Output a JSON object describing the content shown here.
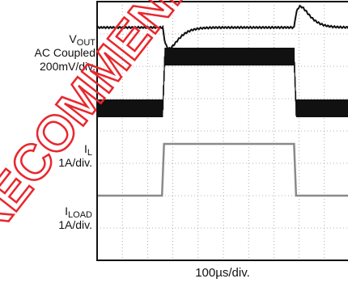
{
  "chart_data": {
    "type": "line",
    "x_scale": "100µs/div.",
    "grid": true,
    "traces": [
      {
        "label_main": "V",
        "label_sub": "OUT",
        "label_line2": "AC Coupled",
        "label_line3": "200mV/div.",
        "color": "#111111",
        "kind": "voltage_transient",
        "baseline_div": 3.2,
        "events_div": [
          {
            "x": 2.6,
            "type": "undershoot",
            "depth_div": 0.65
          },
          {
            "x": 7.8,
            "type": "overshoot",
            "depth_div": 0.65
          }
        ]
      },
      {
        "label_main": "I",
        "label_sub": "L",
        "label_line2": "1A/div.",
        "label_line3": "",
        "color": "#111111",
        "kind": "ripple_current",
        "low_div": 0.7,
        "high_div": 2.3,
        "ripple_div": 0.55,
        "step_up_x": 2.6,
        "step_down_x": 7.8
      },
      {
        "label_main": "I",
        "label_sub": "LOAD",
        "label_line2": "1A/div.",
        "label_line3": "",
        "color": "#8a8a8a",
        "kind": "load_step",
        "low_div": -2.0,
        "high_div": -0.4,
        "step_up_x": 2.6,
        "step_down_x": 7.8
      }
    ]
  },
  "watermark": {
    "text": "RECOMMENDED FOR NEW DESIGNS",
    "color": "#e8272d"
  }
}
